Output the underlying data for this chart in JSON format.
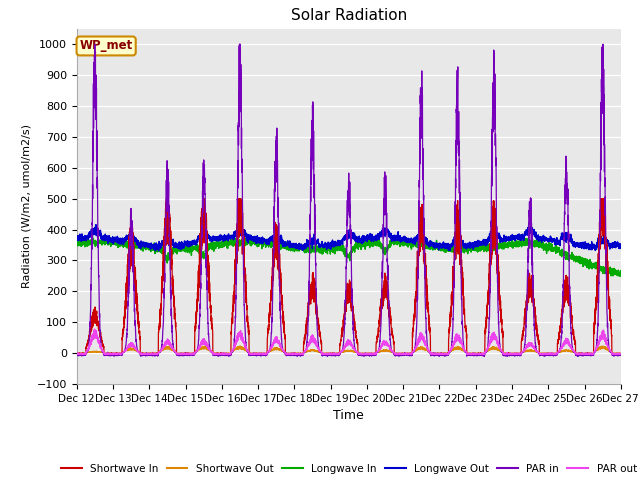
{
  "title": "Solar Radiation",
  "xlabel": "Time",
  "ylabel": "Radiation (W/m2, umol/m2/s)",
  "ylim": [
    -100,
    1050
  ],
  "yticks": [
    -100,
    0,
    100,
    200,
    300,
    400,
    500,
    600,
    700,
    800,
    900,
    1000
  ],
  "plot_bg": "#e8e8e8",
  "fig_bg": "#ffffff",
  "annotation_text": "WP_met",
  "annotation_bg": "#ffffcc",
  "annotation_border": "#cc8800",
  "legend_entries": [
    "Shortwave In",
    "Shortwave Out",
    "Longwave In",
    "Longwave Out",
    "PAR in",
    "PAR out"
  ],
  "shortwave_in_color": "#cc0000",
  "shortwave_out_color": "#dd8800",
  "longwave_in_color": "#00aa00",
  "longwave_out_color": "#0000cc",
  "par_in_color": "#7700bb",
  "par_out_color": "#ee44ee",
  "n_days": 15,
  "start_day": 12
}
